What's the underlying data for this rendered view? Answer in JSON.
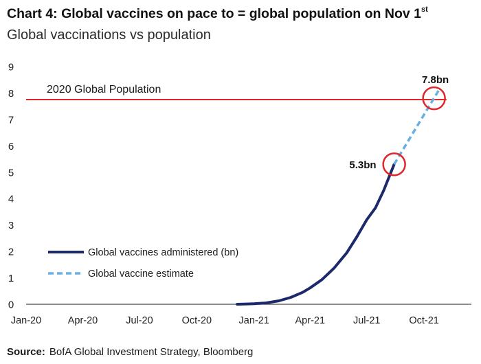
{
  "chart_data": {
    "type": "line",
    "title": "Chart 4: Global vaccines on pace to = global population on Nov 1",
    "title_superscript": "st",
    "subtitle": "Global vaccinations vs population",
    "xlabel": "",
    "ylabel": "",
    "x_scale": "date",
    "xlim": [
      "2020-01-01",
      "2021-12-16"
    ],
    "ylim": [
      0,
      9
    ],
    "yticks": [
      0,
      1,
      2,
      3,
      4,
      5,
      6,
      7,
      8,
      9
    ],
    "xticks": [
      {
        "date": "2020-01-01",
        "label": "Jan-20"
      },
      {
        "date": "2020-04-01",
        "label": "Apr-20"
      },
      {
        "date": "2020-07-01",
        "label": "Jul-20"
      },
      {
        "date": "2020-10-01",
        "label": "Oct-20"
      },
      {
        "date": "2021-01-01",
        "label": "Jan-21"
      },
      {
        "date": "2021-04-01",
        "label": "Apr-21"
      },
      {
        "date": "2021-07-01",
        "label": "Jul-21"
      },
      {
        "date": "2021-10-01",
        "label": "Oct-21"
      }
    ],
    "grid": false,
    "legend": {
      "placement": "lower-left"
    },
    "series": [
      {
        "name": "Global vaccines administered (bn)",
        "line_style": "solid",
        "color": "#1c2a6b",
        "points": [
          [
            "2020-12-05",
            0
          ],
          [
            "2020-12-20",
            0.01
          ],
          [
            "2021-01-01",
            0.02
          ],
          [
            "2021-01-20",
            0.05
          ],
          [
            "2021-02-10",
            0.13
          ],
          [
            "2021-03-01",
            0.26
          ],
          [
            "2021-03-20",
            0.45
          ],
          [
            "2021-04-01",
            0.62
          ],
          [
            "2021-04-20",
            0.93
          ],
          [
            "2021-05-10",
            1.38
          ],
          [
            "2021-05-30",
            1.95
          ],
          [
            "2021-06-15",
            2.55
          ],
          [
            "2021-07-01",
            3.2
          ],
          [
            "2021-07-15",
            3.65
          ],
          [
            "2021-07-28",
            4.3
          ],
          [
            "2021-08-08",
            4.95
          ],
          [
            "2021-08-14",
            5.3
          ]
        ]
      },
      {
        "name": "Global vaccine estimate",
        "line_style": "dashed",
        "color": "#6aafe2",
        "points": [
          [
            "2021-08-14",
            5.3
          ],
          [
            "2021-10-27",
            8.2
          ]
        ]
      }
    ],
    "reference_lines": [
      {
        "label": "2020 Global Population",
        "y": 7.75,
        "x_start": "2020-01-01",
        "x_end": "2021-11-06",
        "color": "#e1262b"
      }
    ],
    "annotations": [
      {
        "label": "5.3bn",
        "x": "2021-08-14",
        "y": 5.3,
        "label_position": "left",
        "marker": "circle",
        "color": "#e1262b"
      },
      {
        "label": "7.8bn",
        "x": "2021-10-17",
        "y": 7.8,
        "label_position": "above",
        "marker": "circle",
        "color": "#e1262b"
      }
    ]
  },
  "source": {
    "label": "Source:",
    "text": "BofA Global Investment Strategy, Bloomberg"
  }
}
